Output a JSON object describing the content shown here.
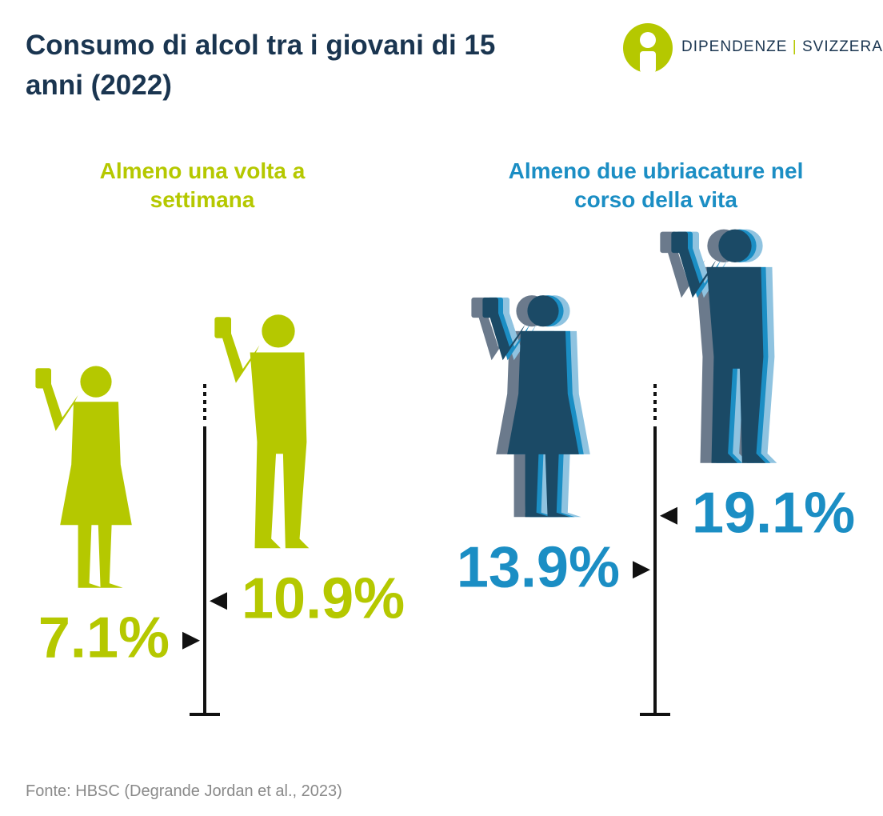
{
  "header": {
    "title": "Consumo di alcol tra i giovani di 15 anni (2022)",
    "logo": [
      "DIPENDENZE",
      "SVIZZERA"
    ]
  },
  "chart_data": [
    {
      "type": "pictogram",
      "title": "Almeno una volta a settimana",
      "values": [
        7.1,
        10.9
      ],
      "value_labels": [
        "7.1%",
        "10.9%"
      ],
      "color": "#b5c800"
    },
    {
      "type": "pictogram",
      "title": "Almeno due ubriacature nel corso della vita",
      "values": [
        13.9,
        19.1
      ],
      "value_labels": [
        "13.9%",
        "19.1%"
      ],
      "color": "#1b8ec4"
    }
  ],
  "source": "Fonte: HBSC (Degrande Jordan et al., 2023)"
}
